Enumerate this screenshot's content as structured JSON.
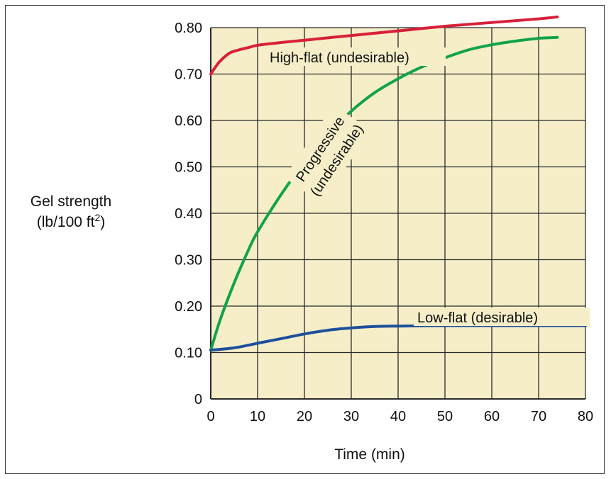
{
  "colors": {
    "plot_background": "#f5eec8",
    "grid": "#2a2a2a",
    "high_flat": "#d8203a",
    "progressive": "#13a348",
    "low_flat": "#1e4f9c"
  },
  "chart_data": {
    "type": "line",
    "title": "",
    "xlabel": "Time (min)",
    "ylabel_line1": "Gel strength",
    "ylabel_line2_prefix": "(lb/100 ft",
    "ylabel_superscript": "2",
    "ylabel_line2_suffix": ")",
    "xlim": [
      0,
      80
    ],
    "ylim": [
      0,
      0.8
    ],
    "grid": true,
    "x_ticks": [
      "0",
      "10",
      "20",
      "30",
      "40",
      "50",
      "60",
      "70",
      "80"
    ],
    "y_ticks": [
      "0",
      "0.10",
      "0.20",
      "0.30",
      "0.40",
      "0.50",
      "0.60",
      "0.70",
      "0.80"
    ],
    "series": [
      {
        "key": "high_flat",
        "name": "High-flat (undesirable)",
        "x": [
          0,
          1,
          2,
          4,
          6,
          8,
          10,
          15,
          20,
          30,
          40,
          50,
          60,
          70,
          74
        ],
        "y": [
          0.7,
          0.715,
          0.728,
          0.745,
          0.752,
          0.757,
          0.762,
          0.768,
          0.773,
          0.783,
          0.793,
          0.803,
          0.811,
          0.819,
          0.823
        ]
      },
      {
        "key": "progressive",
        "name_line1": "Progressive",
        "name_line2": "(undesirable)",
        "x": [
          0,
          2,
          5,
          8,
          10,
          15,
          20,
          25,
          30,
          35,
          40,
          45,
          50,
          55,
          60,
          65,
          70,
          74
        ],
        "y": [
          0.105,
          0.17,
          0.25,
          0.32,
          0.36,
          0.44,
          0.51,
          0.57,
          0.62,
          0.66,
          0.69,
          0.715,
          0.735,
          0.752,
          0.763,
          0.771,
          0.777,
          0.779
        ]
      },
      {
        "key": "low_flat",
        "name": "Low-flat (desirable)",
        "x": [
          0,
          5,
          10,
          15,
          20,
          25,
          30,
          35,
          40,
          50,
          60,
          70,
          80
        ],
        "y": [
          0.105,
          0.11,
          0.12,
          0.13,
          0.14,
          0.148,
          0.153,
          0.156,
          0.157,
          0.158,
          0.158,
          0.158,
          0.158
        ]
      }
    ]
  }
}
